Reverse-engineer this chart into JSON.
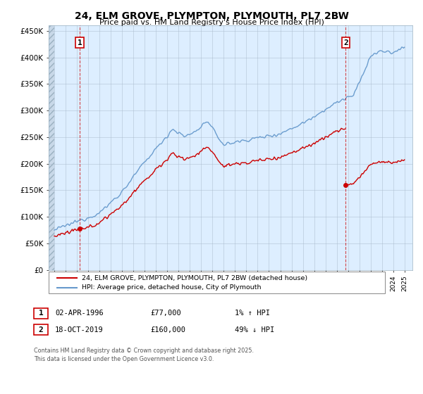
{
  "title": "24, ELM GROVE, PLYMPTON, PLYMOUTH, PL7 2BW",
  "subtitle": "Price paid vs. HM Land Registry's House Price Index (HPI)",
  "ylim": [
    0,
    460000
  ],
  "yticks": [
    0,
    50000,
    100000,
    150000,
    200000,
    250000,
    300000,
    350000,
    400000,
    450000
  ],
  "ytick_labels": [
    "£0",
    "£50K",
    "£100K",
    "£150K",
    "£200K",
    "£250K",
    "£300K",
    "£350K",
    "£400K",
    "£450K"
  ],
  "xlim_start": 1993.5,
  "xlim_end": 2025.7,
  "transaction1": {
    "date": "02-APR-1996",
    "price": 77000,
    "year": 1996.25,
    "pct": "1%",
    "dir": "↑"
  },
  "transaction2": {
    "date": "18-OCT-2019",
    "price": 160000,
    "year": 2019.79,
    "pct": "49%",
    "dir": "↓"
  },
  "legend_line1": "24, ELM GROVE, PLYMPTON, PLYMOUTH, PL7 2BW (detached house)",
  "legend_line2": "HPI: Average price, detached house, City of Plymouth",
  "footnote": "Contains HM Land Registry data © Crown copyright and database right 2025.\nThis data is licensed under the Open Government Licence v3.0.",
  "red_color": "#cc0000",
  "blue_color": "#6699cc",
  "bg_color": "#ddeeff",
  "grid_color": "#aabbcc"
}
